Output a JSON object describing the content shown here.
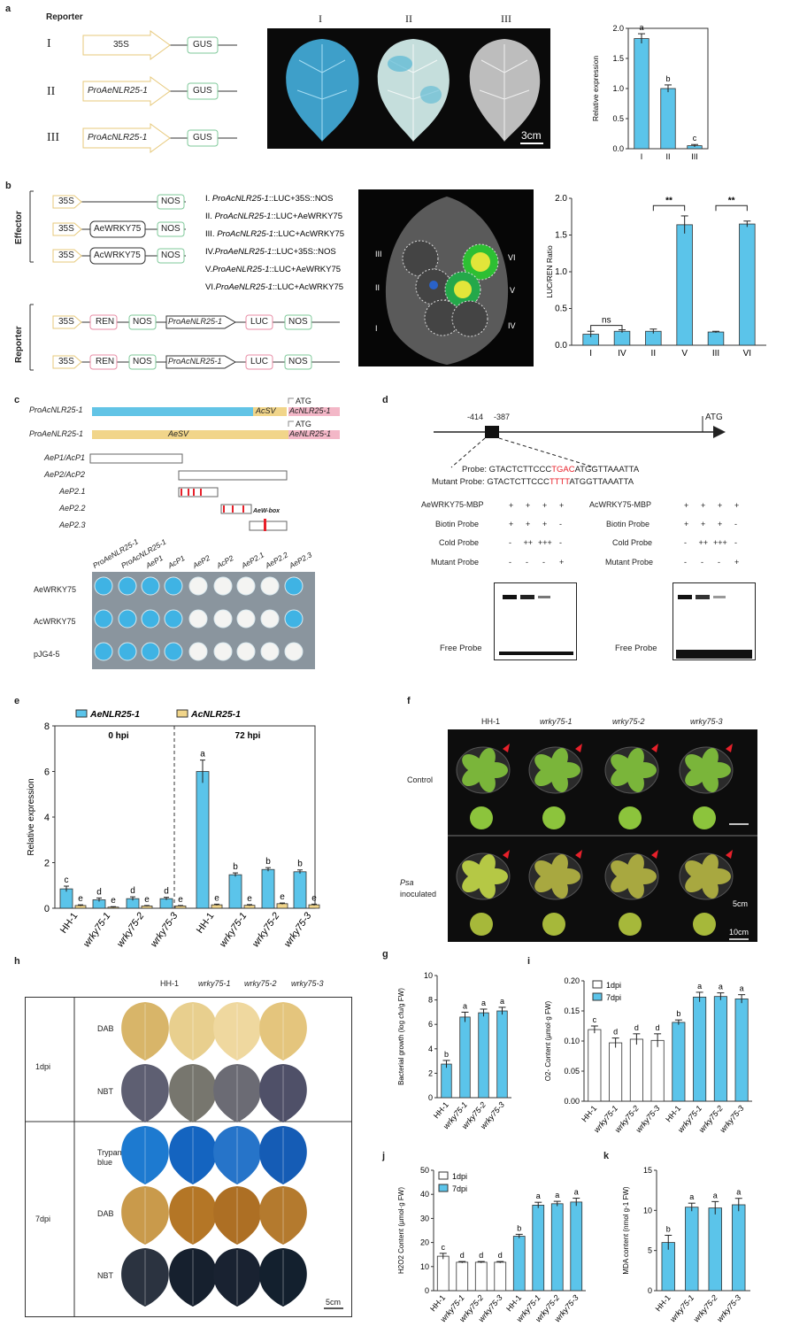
{
  "panel_labels": {
    "a": "a",
    "b": "b",
    "c": "c",
    "d": "d",
    "e": "e",
    "f": "f",
    "g": "g",
    "h": "h",
    "i": "i",
    "j": "j",
    "k": "k"
  },
  "a": {
    "reporter_title": "Reporter",
    "rows": [
      {
        "roman": "I",
        "promoter": "35S",
        "reporter": "GUS"
      },
      {
        "roman": "II",
        "promoter": "ProAeNLR25-1",
        "reporter": "GUS"
      },
      {
        "roman": "III",
        "promoter": "ProAcNLR25-1",
        "reporter": "GUS"
      }
    ],
    "photo_labels": [
      "I",
      "II",
      "III"
    ],
    "scale": "3cm"
  },
  "b": {
    "effector_label": "Effector",
    "reporter_label": "Reporter",
    "effectors": [
      {
        "promoter": "35S",
        "gene": "",
        "term": "NOS"
      },
      {
        "promoter": "35S",
        "gene": "AeWRKY75",
        "term": "NOS"
      },
      {
        "promoter": "35S",
        "gene": "AcWRKY75",
        "term": "NOS"
      }
    ],
    "reporters": [
      {
        "p1": "35S",
        "g1": "REN",
        "t1": "NOS",
        "promoter": "ProAeNLR25-1",
        "g2": "LUC",
        "t2": "NOS"
      },
      {
        "p1": "35S",
        "g1": "REN",
        "t1": "NOS",
        "promoter": "ProAcNLR25-1",
        "g2": "LUC",
        "t2": "NOS"
      }
    ],
    "combos": [
      {
        "num": "I. ",
        "pro": "ProAcNLR25-1",
        "rest": "::LUC+35S::NOS"
      },
      {
        "num": "II. ",
        "pro": "ProAcNLR25-1",
        "rest": "::LUC+AeWRKY75"
      },
      {
        "num": "III. ",
        "pro": "ProAcNLR25-1",
        "rest": "::LUC+AcWRKY75"
      },
      {
        "num": "IV.",
        "pro": "ProAeNLR25-1",
        "rest": "::LUC+35S::NOS"
      },
      {
        "num": "V.",
        "pro": "ProAeNLR25-1",
        "rest": "::LUC+AeWRKY75"
      },
      {
        "num": "VI.",
        "pro": "ProAeNLR25-1",
        "rest": "::LUC+AcWRKY75"
      }
    ],
    "leaf_labels": [
      "III",
      "II",
      "I",
      "VI",
      "V",
      "IV"
    ]
  },
  "c": {
    "constructs": [
      {
        "name": "ProAcNLR25-1",
        "sv": "AcSV",
        "gene": "AcNLR25-1",
        "atg": "ATG"
      },
      {
        "name": "ProAeNLR25-1",
        "sv": "AeSV",
        "gene": "AeNLR25-1",
        "atg": "ATG"
      }
    ],
    "fragments": [
      "AeP1/AcP1",
      "AeP2/AcP2",
      "AeP2.1",
      "AeP2.2",
      "AeP2.3"
    ],
    "box_label": "AeW-box",
    "y1h_columns": [
      "ProAeNLR25-1",
      "ProAcNLR25-1",
      "AeP1",
      "AcP1",
      "AeP2",
      "AcP2",
      "AeP2.1",
      "AeP2.2",
      "AeP2.3"
    ],
    "y1h_rows": [
      "AeWRKY75",
      "AcWRKY75",
      "pJG4-5"
    ],
    "y1h_blue": [
      [
        true,
        true,
        true,
        true,
        false,
        false,
        false,
        false,
        true
      ],
      [
        true,
        true,
        true,
        true,
        false,
        false,
        false,
        false,
        true
      ],
      [
        true,
        true,
        true,
        true,
        false,
        false,
        false,
        false,
        false
      ]
    ]
  },
  "d": {
    "positions": [
      "-414",
      "-387"
    ],
    "atg": "ATG",
    "probe_prefix": "Probe: ",
    "probe_a": "GTACTCTTCCC",
    "probe_b": "TGAC",
    "probe_c": "ATGGTTAAATTA",
    "mutant_prefix": "Mutant Probe: ",
    "mutant_a": "GTACTCTTCCC",
    "mutant_b": "TTTT",
    "mutant_c": "ATGGTTAAATTA",
    "emsa": [
      {
        "protein": "AeWRKY75-MBP",
        "rows": [
          [
            "+",
            "+",
            "+",
            "+"
          ],
          [
            "+",
            "+",
            "+",
            "-"
          ],
          [
            "-",
            "++",
            "+++",
            "-"
          ],
          [
            "-",
            "-",
            "-",
            "+"
          ]
        ]
      },
      {
        "protein": "AcWRKY75-MBP",
        "rows": [
          [
            "+",
            "+",
            "+",
            "+"
          ],
          [
            "+",
            "+",
            "+",
            "-"
          ],
          [
            "-",
            "++",
            "+++",
            "-"
          ],
          [
            "-",
            "-",
            "-",
            "+"
          ]
        ]
      }
    ],
    "row_labels": [
      "Biotin Probe",
      "Cold Probe",
      "Mutant Probe"
    ],
    "free_probe": "Free Probe"
  },
  "f": {
    "columns": [
      "HH-1",
      "wrky75-1",
      "wrky75-2",
      "wrky75-3"
    ],
    "rows": [
      "Control",
      "Psa",
      "inoculated"
    ],
    "scale1": "5cm",
    "scale2": "10cm"
  },
  "h": {
    "columns": [
      "HH-1",
      "wrky75-1",
      "wrky75-2",
      "wrky75-3"
    ],
    "times": [
      "1dpi",
      "7dpi"
    ],
    "stains_1dpi": [
      "DAB",
      "NBT"
    ],
    "stains_7dpi": [
      "Trypan",
      "blue",
      "DAB",
      "NBT"
    ],
    "scale": "5cm"
  },
  "colors": {
    "bar": "#5bc4ea",
    "edge": "#333333",
    "red": "#e8202a",
    "gold": "#f1d58a",
    "pink": "#f3b7c7",
    "leaf_bg": "#111111"
  },
  "chart_data": [
    {
      "id": "a",
      "type": "bar",
      "categories": [
        "I",
        "II",
        "III"
      ],
      "values": [
        1.83,
        1.0,
        0.05
      ],
      "errors": [
        0.08,
        0.06,
        0.02
      ],
      "letters": [
        "a",
        "b",
        "c"
      ],
      "ylabel": "Relative expression",
      "ylim": [
        0,
        2.0
      ],
      "yticks": [
        "0.0",
        "0.5",
        "1.0",
        "1.5",
        "2.0"
      ]
    },
    {
      "id": "b",
      "type": "bar",
      "categories": [
        "I",
        "IV",
        "II",
        "V",
        "III",
        "VI"
      ],
      "values": [
        0.15,
        0.19,
        0.19,
        1.64,
        0.18,
        1.65
      ],
      "errors": [
        0.04,
        0.02,
        0.03,
        0.12,
        0.01,
        0.04
      ],
      "ylabel": "LUC/REN Ratio",
      "ylim": [
        0,
        2.0
      ],
      "yticks": [
        "0.0",
        "0.5",
        "1.0",
        "1.5",
        "2.0"
      ],
      "annotations": [
        "ns",
        "**",
        "**"
      ]
    },
    {
      "id": "e",
      "type": "bar",
      "categories": [
        "HH-1",
        "wrky75-1",
        "wrky75-2",
        "wrky75-3",
        "HH-1",
        "wrky75-1",
        "wrky75-2",
        "wrky75-3"
      ],
      "series": [
        {
          "name": "AeNLR25-1",
          "values": [
            0.85,
            0.37,
            0.42,
            0.42,
            6.0,
            1.47,
            1.7,
            1.6
          ],
          "errors": [
            0.12,
            0.08,
            0.08,
            0.06,
            0.5,
            0.08,
            0.08,
            0.08
          ],
          "letters": [
            "c",
            "d",
            "d",
            "d",
            "a",
            "b",
            "b",
            "b"
          ]
        },
        {
          "name": "AcNLR25-1",
          "values": [
            0.12,
            0.05,
            0.1,
            0.1,
            0.15,
            0.13,
            0.2,
            0.15
          ],
          "errors": [
            0.03,
            0.02,
            0.02,
            0.02,
            0.03,
            0.03,
            0.03,
            0.03
          ],
          "letters": [
            "e",
            "e",
            "e",
            "e",
            "e",
            "e",
            "e",
            "e"
          ]
        }
      ],
      "groups": [
        "0 hpi",
        "72 hpi"
      ],
      "ylabel": "Relative expression",
      "ylim": [
        0,
        8
      ],
      "yticks": [
        "0",
        "2",
        "4",
        "6",
        "8"
      ]
    },
    {
      "id": "g",
      "type": "bar",
      "categories": [
        "HH-1",
        "wrky75-1",
        "wrky75-2",
        "wrky75-3"
      ],
      "values": [
        2.75,
        6.6,
        6.95,
        7.1
      ],
      "errors": [
        0.3,
        0.4,
        0.3,
        0.3
      ],
      "letters": [
        "b",
        "a",
        "a",
        "a"
      ],
      "ylabel": "Bacterial growth (log cfu/g FW)",
      "ylim": [
        0,
        10
      ],
      "yticks": [
        "0",
        "2",
        "4",
        "6",
        "8",
        "10"
      ]
    },
    {
      "id": "i",
      "type": "bar",
      "categories": [
        "HH-1",
        "wrky75-1",
        "wrky75-2",
        "wrky75-3",
        "HH-1",
        "wrky75-1",
        "wrky75-2",
        "wrky75-3"
      ],
      "series": [
        {
          "name": "1dpi",
          "values": [
            0.119,
            0.097,
            0.103,
            0.101,
            0,
            0,
            0,
            0
          ]
        },
        {
          "name": "7dpi",
          "values": [
            0,
            0,
            0,
            0,
            0.131,
            0.173,
            0.174,
            0.17
          ]
        }
      ],
      "values": [
        0.119,
        0.097,
        0.103,
        0.101,
        0.131,
        0.173,
        0.174,
        0.17
      ],
      "errors": [
        0.006,
        0.008,
        0.009,
        0.011,
        0.004,
        0.008,
        0.006,
        0.007
      ],
      "letters": [
        "c",
        "d",
        "d",
        "d",
        "b",
        "a",
        "a",
        "a"
      ],
      "ylabel": "O2- Content (µmol·g FW)",
      "ylim": [
        0,
        0.2
      ],
      "yticks": [
        "0.00",
        "0.05",
        "0.10",
        "0.15",
        "0.20"
      ]
    },
    {
      "id": "j",
      "type": "bar",
      "categories": [
        "HH-1",
        "wrky75-1",
        "wrky75-2",
        "wrky75-3",
        "HH-1",
        "wrky75-1",
        "wrky75-2",
        "wrky75-3"
      ],
      "series": [
        {
          "name": "1dpi",
          "values": [
            14.3,
            11.8,
            11.8,
            11.8,
            0,
            0,
            0,
            0
          ]
        },
        {
          "name": "7dpi",
          "values": [
            0,
            0,
            0,
            0,
            22.6,
            35.5,
            36.1,
            36.8
          ]
        }
      ],
      "values": [
        14.3,
        11.8,
        11.8,
        11.8,
        22.6,
        35.5,
        36.1,
        36.8
      ],
      "errors": [
        1.2,
        0.3,
        0.3,
        0.3,
        0.8,
        1.2,
        1.0,
        1.6
      ],
      "letters": [
        "c",
        "d",
        "d",
        "d",
        "b",
        "a",
        "a",
        "a"
      ],
      "ylabel": "H2O2 Content (µmol·g FW)",
      "ylim": [
        0,
        50
      ],
      "yticks": [
        "0",
        "10",
        "20",
        "30",
        "40",
        "50"
      ]
    },
    {
      "id": "k",
      "type": "bar",
      "categories": [
        "HH-1",
        "wrky75-1",
        "wrky75-2",
        "wrky75-3"
      ],
      "values": [
        6.0,
        10.4,
        10.3,
        10.7
      ],
      "errors": [
        0.9,
        0.5,
        0.8,
        0.8
      ],
      "letters": [
        "b",
        "a",
        "a",
        "a"
      ],
      "ylabel": "MDA content (nmol g-1 FW)",
      "ylim": [
        0,
        15
      ],
      "yticks": [
        "0",
        "5",
        "10",
        "15"
      ]
    }
  ]
}
